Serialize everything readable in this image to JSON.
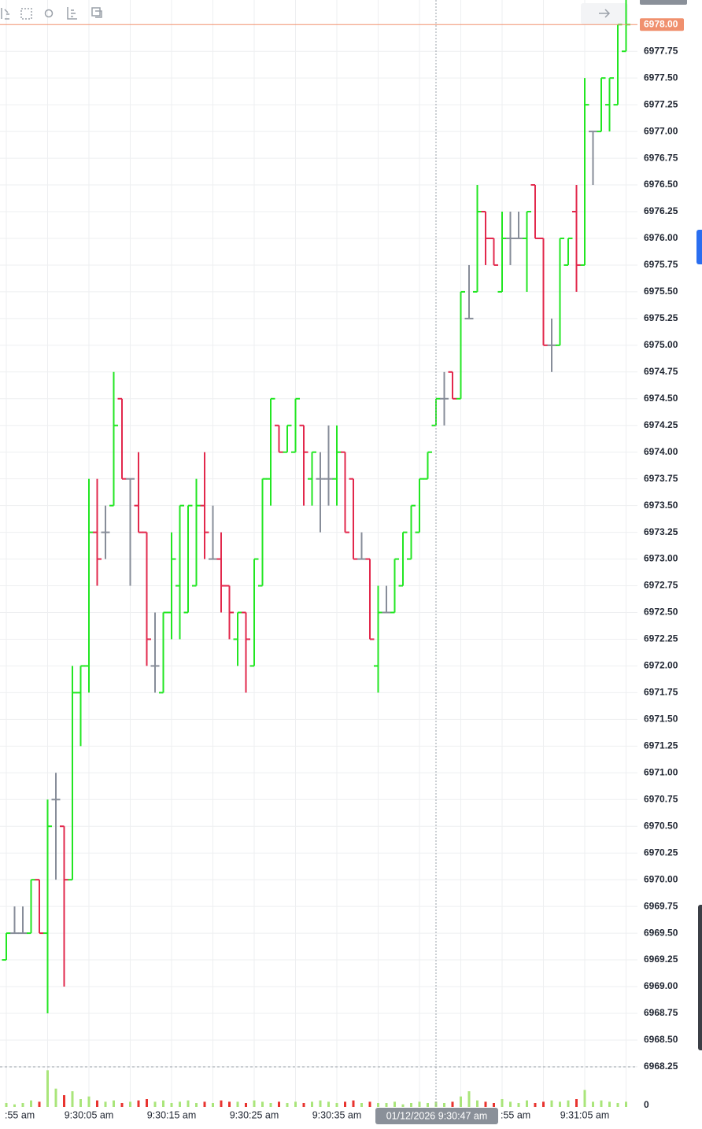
{
  "chart_data": {
    "type": "ohlc",
    "categories": [
      ":55 am",
      null,
      null,
      null,
      null,
      null,
      null,
      null,
      null,
      null,
      "9:30:05 am",
      null,
      null,
      null,
      null,
      null,
      null,
      null,
      null,
      null,
      "9:30:15 am",
      null,
      null,
      null,
      null,
      null,
      null,
      null,
      null,
      null,
      "9:30:25 am",
      null,
      null,
      null,
      null,
      null,
      null,
      null,
      null,
      null,
      "9:30:35 am",
      null,
      null,
      null,
      null,
      null,
      null,
      null,
      null,
      null,
      null,
      null,
      null,
      null,
      null,
      null,
      null,
      null,
      null,
      null,
      ":55 am",
      null,
      null,
      null,
      null,
      null,
      null,
      null,
      null,
      null,
      "9:31:05 am",
      null,
      null,
      null,
      null,
      null
    ],
    "open": [
      6969.25,
      6969.5,
      6969.5,
      6969.5,
      6970.0,
      6969.5,
      6970.75,
      6970.5,
      6970.0,
      6971.75,
      6972.0,
      6973.25,
      6973.25,
      6973.5,
      6974.5,
      6973.75,
      6973.5,
      6973.25,
      6972.0,
      6971.75,
      6972.5,
      6972.75,
      6972.5,
      6972.75,
      6973.5,
      6973.0,
      6973.0,
      6972.75,
      6972.25,
      6972.5,
      6972.0,
      6972.75,
      6973.75,
      6974.25,
      6974.0,
      6974.0,
      6974.25,
      6973.75,
      6973.75,
      6973.75,
      6973.75,
      6974.0,
      6973.75,
      6973.0,
      6973.0,
      6972.0,
      6972.5,
      6972.5,
      6972.75,
      6973.0,
      6973.25,
      6973.75,
      6974.25,
      6974.5,
      6974.75,
      6974.5,
      6975.25,
      6975.5,
      6976.25,
      6976.0,
      6975.5,
      6976.0,
      6976.0,
      6976.0,
      6976.5,
      6976.0,
      6975.0,
      6975.0,
      6975.75,
      6976.25,
      6975.75,
      6977.0,
      6977.0,
      6977.25,
      6977.25,
      6977.75
    ],
    "high": [
      6969.5,
      6969.75,
      6969.75,
      6970.0,
      6970.0,
      6970.75,
      6971.0,
      6970.5,
      6972.0,
      6972.0,
      6973.75,
      6973.75,
      6973.5,
      6974.75,
      6974.5,
      6973.75,
      6974.0,
      6973.25,
      6972.5,
      6972.5,
      6973.25,
      6973.5,
      6973.5,
      6973.75,
      6974.0,
      6973.5,
      6973.25,
      6972.75,
      6972.5,
      6972.5,
      6973.0,
      6973.75,
      6974.5,
      6974.25,
      6974.25,
      6974.5,
      6974.25,
      6974.0,
      6974.0,
      6974.25,
      6974.25,
      6974.0,
      6973.75,
      6973.25,
      6973.0,
      6972.75,
      6972.75,
      6973.0,
      6973.25,
      6973.5,
      6973.75,
      6974.0,
      6974.5,
      6974.75,
      6974.75,
      6975.5,
      6975.75,
      6976.5,
      6976.25,
      6976.0,
      6976.25,
      6976.25,
      6976.25,
      6976.25,
      6976.5,
      6976.0,
      6975.25,
      6976.0,
      6976.0,
      6976.5,
      6977.5,
      6977.0,
      6977.5,
      6977.5,
      6978.0,
      6978.25
    ],
    "low": [
      6969.25,
      6969.5,
      6969.5,
      6969.5,
      6969.5,
      6968.75,
      6970.0,
      6969.0,
      6970.0,
      6971.25,
      6971.75,
      6972.75,
      6973.0,
      6973.5,
      6973.75,
      6972.75,
      6973.25,
      6972.0,
      6971.75,
      6971.75,
      6972.25,
      6972.25,
      6972.5,
      6972.75,
      6973.0,
      6973.0,
      6972.5,
      6972.25,
      6972.0,
      6971.75,
      6972.0,
      6972.75,
      6973.5,
      6974.0,
      6974.0,
      6974.0,
      6973.5,
      6973.5,
      6973.25,
      6973.5,
      6973.5,
      6973.25,
      6973.0,
      6973.0,
      6972.25,
      6971.75,
      6972.5,
      6972.5,
      6972.75,
      6973.0,
      6973.25,
      6973.75,
      6974.25,
      6974.25,
      6974.5,
      6974.5,
      6975.25,
      6975.5,
      6975.75,
      6975.75,
      6975.5,
      6975.75,
      6976.0,
      6975.5,
      6976.0,
      6975.0,
      6974.75,
      6975.0,
      6975.75,
      6975.5,
      6975.75,
      6976.5,
      6977.0,
      6977.0,
      6977.25,
      6977.75
    ],
    "close": [
      6969.5,
      6969.5,
      6969.5,
      6970.0,
      6969.5,
      6970.5,
      6970.75,
      6970.0,
      6971.75,
      6972.0,
      6973.25,
      6973.0,
      6973.25,
      6974.25,
      6973.75,
      6973.75,
      6973.25,
      6972.25,
      6972.0,
      6972.5,
      6973.0,
      6973.5,
      6973.5,
      6973.5,
      6973.25,
      6973.0,
      6972.75,
      6972.5,
      6972.5,
      6972.25,
      6973.0,
      6973.75,
      6974.5,
      6974.0,
      6974.25,
      6974.5,
      6974.0,
      6974.0,
      6973.75,
      6973.75,
      6974.0,
      6973.25,
      6973.0,
      6973.0,
      6972.25,
      6972.5,
      6972.5,
      6973.0,
      6973.25,
      6973.5,
      6973.75,
      6974.0,
      6974.5,
      6974.5,
      6974.5,
      6975.5,
      6975.25,
      6976.25,
      6976.0,
      6975.75,
      6976.0,
      6976.0,
      6976.0,
      6976.25,
      6976.0,
      6975.0,
      6975.0,
      6976.0,
      6976.0,
      6975.75,
      6977.25,
      6977.0,
      6977.5,
      6977.5,
      6978.0,
      6978.0
    ],
    "volume": [
      3,
      2,
      3,
      5,
      4,
      28,
      14,
      9,
      12,
      6,
      8,
      5,
      4,
      5,
      3,
      4,
      5,
      6,
      4,
      5,
      3,
      4,
      5,
      3,
      4,
      3,
      5,
      4,
      4,
      3,
      5,
      4,
      3,
      4,
      3,
      4,
      3,
      4,
      5,
      4,
      3,
      4,
      5,
      3,
      4,
      3,
      3,
      4,
      2,
      3,
      4,
      3,
      4,
      3,
      4,
      8,
      12,
      5,
      4,
      3,
      6,
      4,
      3,
      5,
      3,
      4,
      5,
      4,
      5,
      6,
      13,
      4,
      5,
      4,
      3,
      4
    ],
    "up_color": "#22e622",
    "down_color": "#e2284c",
    "flat_color": "#878d99",
    "volume_up_color": "#a9e57a",
    "volume_down_color": "#e8332f",
    "ylim": [
      6968.22,
      6978.23
    ],
    "yticks": [
      {
        "value": 6968.25,
        "label": "6968.25"
      },
      {
        "value": 6968.5,
        "label": "6968.50"
      },
      {
        "value": 6968.75,
        "label": "6968.75"
      },
      {
        "value": 6969,
        "label": "6969.00"
      },
      {
        "value": 6969.25,
        "label": "6969.25"
      },
      {
        "value": 6969.5,
        "label": "6969.50"
      },
      {
        "value": 6969.75,
        "label": "6969.75"
      },
      {
        "value": 6970,
        "label": "6970.00"
      },
      {
        "value": 6970.25,
        "label": "6970.25"
      },
      {
        "value": 6970.5,
        "label": "6970.50"
      },
      {
        "value": 6970.75,
        "label": "6970.75"
      },
      {
        "value": 6971,
        "label": "6971.00"
      },
      {
        "value": 6971.25,
        "label": "6971.25"
      },
      {
        "value": 6971.5,
        "label": "6971.50"
      },
      {
        "value": 6971.75,
        "label": "6971.75"
      },
      {
        "value": 6972,
        "label": "6972.00"
      },
      {
        "value": 6972.25,
        "label": "6972.25"
      },
      {
        "value": 6972.5,
        "label": "6972.50"
      },
      {
        "value": 6972.75,
        "label": "6972.75"
      },
      {
        "value": 6973,
        "label": "6973.00"
      },
      {
        "value": 6973.25,
        "label": "6973.25"
      },
      {
        "value": 6973.5,
        "label": "6973.50"
      },
      {
        "value": 6973.75,
        "label": "6973.75"
      },
      {
        "value": 6974,
        "label": "6974.00"
      },
      {
        "value": 6974.25,
        "label": "6974.25"
      },
      {
        "value": 6974.5,
        "label": "6974.50"
      },
      {
        "value": 6974.75,
        "label": "6974.75"
      },
      {
        "value": 6975,
        "label": "6975.00"
      },
      {
        "value": 6975.25,
        "label": "6975.25"
      },
      {
        "value": 6975.5,
        "label": "6975.50"
      },
      {
        "value": 6975.75,
        "label": "6975.75"
      },
      {
        "value": 6976,
        "label": "6976.00"
      },
      {
        "value": 6976.25,
        "label": "6976.25"
      },
      {
        "value": 6976.5,
        "label": "6976.50"
      },
      {
        "value": 6976.75,
        "label": "6976.75"
      },
      {
        "value": 6977,
        "label": "6977.00"
      },
      {
        "value": 6977.25,
        "label": "6977.25"
      },
      {
        "value": 6977.5,
        "label": "6977.50"
      },
      {
        "value": 6977.75,
        "label": "6977.75"
      }
    ],
    "volume_ylim": [
      0,
      30
    ],
    "volume_yticks": [
      0
    ],
    "last_price": {
      "value": 6978,
      "label": "6978.00"
    },
    "last_price_color": "#f0906e",
    "crosshair_label": "01/12/2026 9:30:47 am",
    "crosshair_index": 52,
    "grid": true
  }
}
